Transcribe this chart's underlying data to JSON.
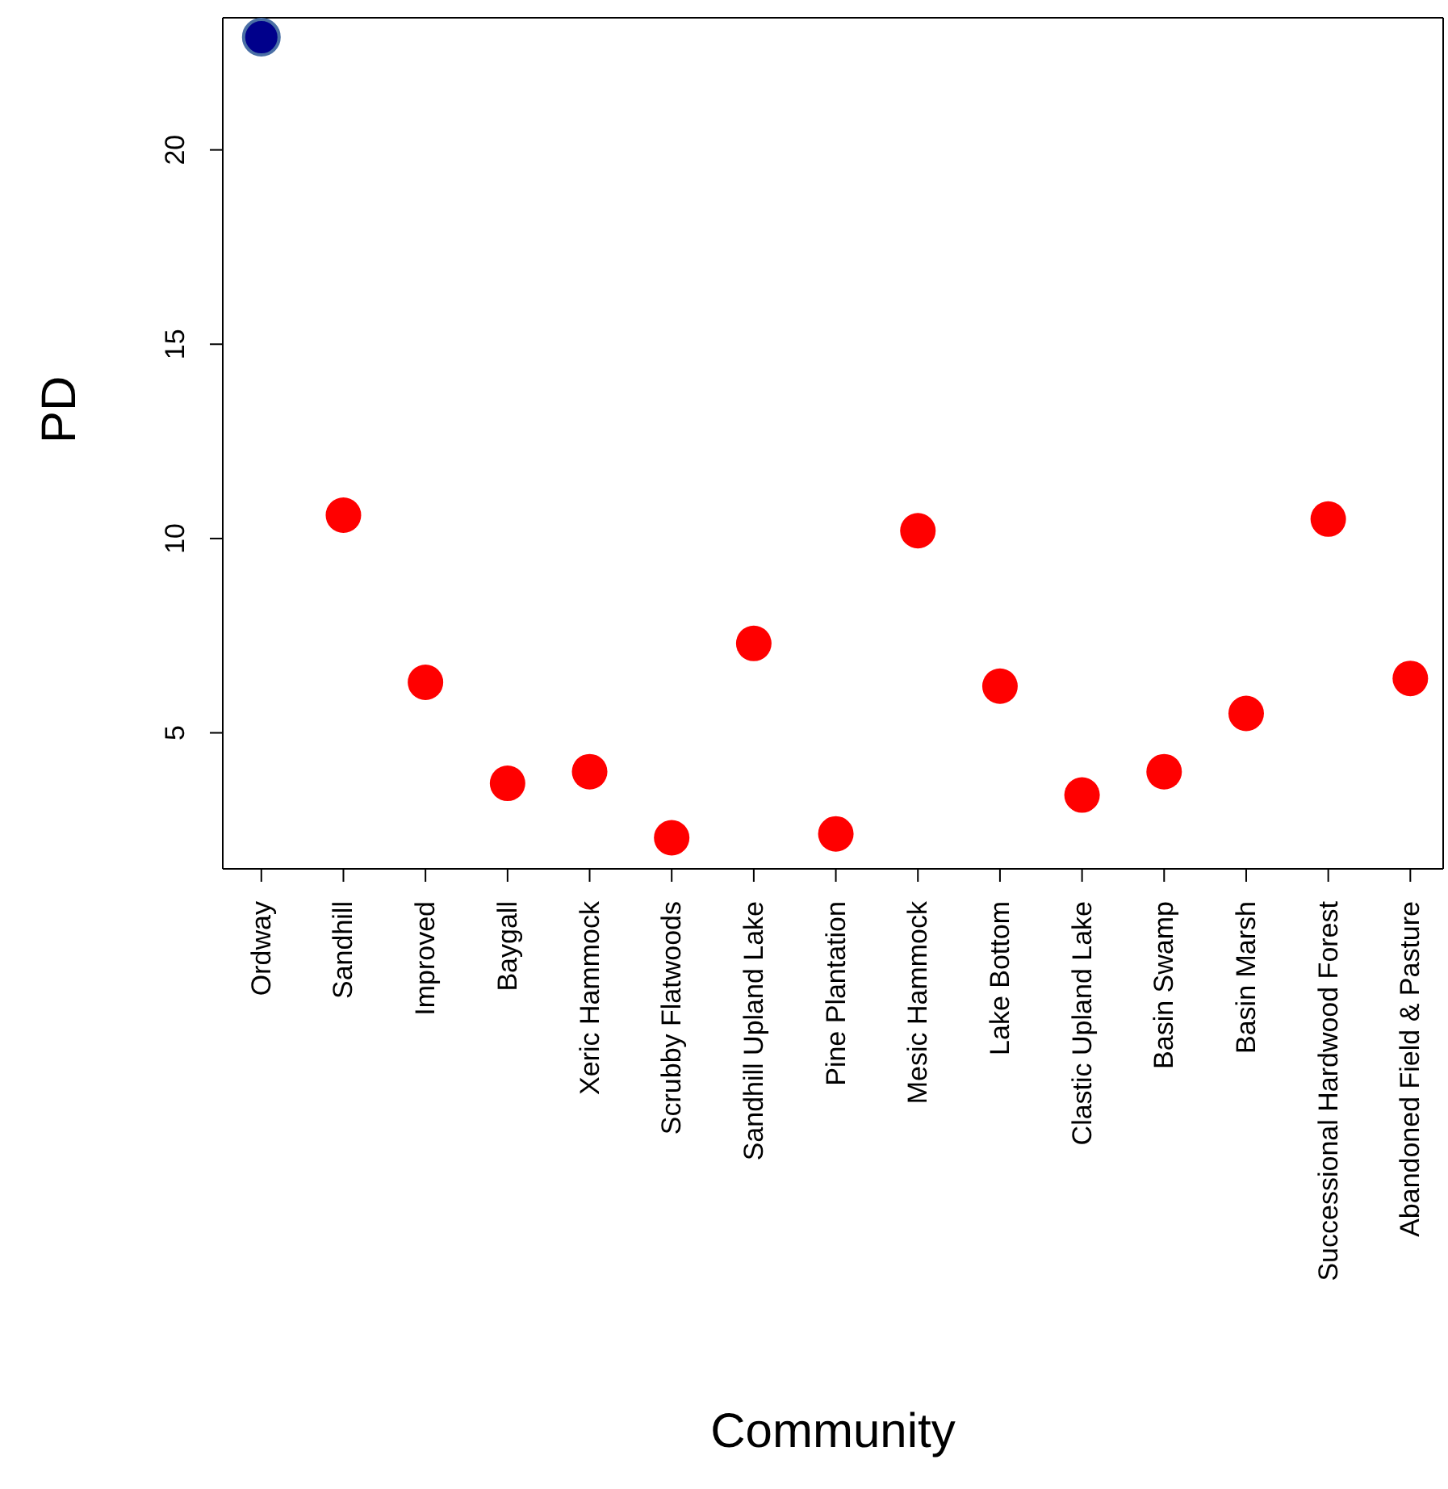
{
  "chart_data": {
    "type": "scatter",
    "xlabel": "Community",
    "ylabel": "PD",
    "categories": [
      "Ordway",
      "Sandhill",
      "Improved",
      "Baygall",
      "Xeric Hammock",
      "Scrubby Flatwoods",
      "Sandhill Upland Lake",
      "Pine Plantation",
      "Mesic Hammock",
      "Lake Bottom",
      "Clastic Upland Lake",
      "Basin Swamp",
      "Basin Marsh",
      "Successional Hardwood Forest",
      "Abandoned Field & Pasture"
    ],
    "series": [
      {
        "color": "#00008b",
        "values": [
          22.9,
          null,
          null,
          null,
          null,
          null,
          null,
          null,
          null,
          null,
          null,
          null,
          null,
          null,
          null
        ]
      },
      {
        "color": "#ff0000",
        "values": [
          null,
          10.6,
          6.3,
          3.7,
          4.0,
          2.3,
          7.3,
          2.4,
          10.2,
          6.2,
          3.4,
          4.0,
          5.5,
          10.5,
          6.4
        ]
      }
    ],
    "ylim": [
      1.5,
      23.4
    ],
    "yticks": [
      5,
      10,
      15,
      20
    ],
    "marker": "circle",
    "grid": false,
    "legend": false
  }
}
